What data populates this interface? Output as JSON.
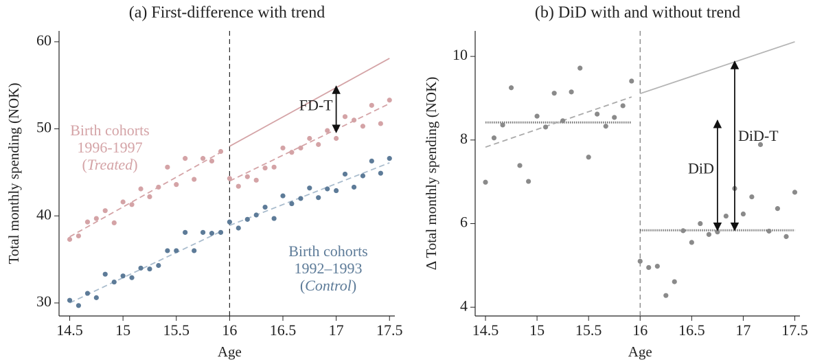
{
  "chart_data": [
    {
      "type": "scatter",
      "title": "(a) First-difference with trend",
      "xlabel": "Age",
      "ylabel": "Total monthly spending (NOK)",
      "xlim": [
        14.4,
        17.55
      ],
      "ylim": [
        28.5,
        61.25
      ],
      "xticks": [
        14.5,
        15,
        15.5,
        16,
        16.5,
        17,
        17.5
      ],
      "yticks": [
        30,
        40,
        50,
        60
      ],
      "vline": 16,
      "x": [
        14.5,
        14.583,
        14.667,
        14.75,
        14.833,
        14.917,
        15,
        15.083,
        15.167,
        15.25,
        15.333,
        15.417,
        15.5,
        15.583,
        15.667,
        15.75,
        15.833,
        15.917,
        16,
        16.083,
        16.167,
        16.25,
        16.333,
        16.417,
        16.5,
        16.583,
        16.667,
        16.75,
        16.833,
        16.917,
        17,
        17.083,
        17.167,
        17.25,
        17.333,
        17.417,
        17.5
      ],
      "series": [
        {
          "color": "#d4a3a6",
          "values": [
            37.3,
            37.7,
            39.3,
            39.7,
            40.6,
            39.2,
            41.6,
            41.3,
            43.1,
            42.2,
            43.3,
            45.6,
            43.6,
            46.6,
            44.2,
            46.6,
            46.3,
            47.4,
            44.3,
            43.4,
            44.5,
            44.1,
            45.5,
            45.6,
            47.8,
            47.3,
            47.8,
            48.9,
            48.2,
            49.8,
            48.9,
            51.4,
            51.0,
            50.3,
            52.7,
            50.6,
            53.3
          ]
        },
        {
          "color": "#5d7b98",
          "values": [
            30.3,
            29.7,
            31.1,
            30.6,
            33.3,
            32.4,
            33.1,
            32.9,
            34.0,
            33.9,
            34.3,
            36.0,
            36.0,
            38.1,
            36.0,
            38.1,
            38.0,
            38.1,
            39.3,
            38.6,
            39.6,
            40.1,
            41.0,
            39.7,
            42.3,
            41.4,
            42.0,
            43.2,
            42.1,
            43.1,
            42.9,
            44.8,
            43.3,
            44.6,
            46.3,
            44.9,
            46.6
          ]
        }
      ],
      "lines": [
        {
          "x": [
            14.5,
            15.917
          ],
          "y": [
            37.6,
            47.3
          ],
          "color": "#d4a3a6",
          "style": "dashed"
        },
        {
          "x": [
            16,
            17.5
          ],
          "y": [
            44.0,
            52.9
          ],
          "color": "#d4a3a6",
          "style": "dashed"
        },
        {
          "x": [
            16,
            17.5
          ],
          "y": [
            48.0,
            58.1
          ],
          "color": "#d4a3a6",
          "style": "solid"
        },
        {
          "x": [
            14.5,
            15.917
          ],
          "y": [
            30.0,
            38.2
          ],
          "color": "#a9bccd",
          "style": "dashed"
        },
        {
          "x": [
            16,
            17.5
          ],
          "y": [
            38.9,
            46.1
          ],
          "color": "#a9bccd",
          "style": "dashed"
        }
      ],
      "arrows": [
        {
          "x": 17,
          "y": [
            49.6,
            54.9
          ],
          "label": "FD-T"
        }
      ],
      "notes": [
        {
          "color": "#d4a3a6",
          "lines": [
            [
              "Birth cohorts"
            ],
            [
              "1996-1997"
            ],
            [
              "(",
              "Treated",
              ")"
            ]
          ]
        },
        {
          "color": "#5d7b98",
          "lines": [
            [
              "Birth cohorts"
            ],
            [
              "1992–1993"
            ],
            [
              "(",
              "Control",
              ")"
            ]
          ]
        }
      ]
    },
    {
      "type": "scatter",
      "title": "(b) DiD with and without trend",
      "xlabel": "Age",
      "ylabel": "Δ Total monthly spending (NOK)",
      "xlim": [
        14.4,
        17.55
      ],
      "ylim": [
        3.79,
        10.61
      ],
      "xticks": [
        14.5,
        15,
        15.5,
        16,
        16.5,
        17,
        17.5
      ],
      "yticks": [
        4,
        6,
        8,
        10
      ],
      "vline": 16,
      "x": [
        14.5,
        14.583,
        14.667,
        14.75,
        14.833,
        14.917,
        15,
        15.083,
        15.167,
        15.25,
        15.333,
        15.417,
        15.5,
        15.583,
        15.667,
        15.75,
        15.833,
        15.917,
        16,
        16.083,
        16.167,
        16.25,
        16.333,
        16.417,
        16.5,
        16.583,
        16.667,
        16.75,
        16.833,
        16.917,
        17,
        17.083,
        17.167,
        17.25,
        17.333,
        17.417,
        17.5
      ],
      "series": [
        {
          "color": "#8a8a8a",
          "values": [
            6.99,
            8.05,
            8.36,
            9.25,
            7.39,
            7.01,
            8.57,
            8.31,
            9.12,
            8.46,
            9.15,
            9.72,
            7.59,
            8.62,
            8.33,
            8.54,
            8.82,
            9.41,
            5.1,
            4.95,
            4.98,
            4.28,
            4.61,
            5.83,
            5.55,
            6.0,
            5.74,
            5.8,
            6.18,
            6.84,
            6.23,
            6.64,
            7.89,
            5.82,
            6.36,
            5.69,
            6.75
          ]
        }
      ],
      "lines": [
        {
          "x": [
            14.5,
            15.917
          ],
          "y": [
            8.42,
            8.42
          ],
          "color": "#777",
          "style": "dotted"
        },
        {
          "x": [
            16,
            17.5
          ],
          "y": [
            5.84,
            5.84
          ],
          "color": "#777",
          "style": "dotted"
        },
        {
          "x": [
            14.5,
            15.917
          ],
          "y": [
            7.83,
            9.03
          ],
          "color": "#aaaaaa",
          "style": "dashed"
        },
        {
          "x": [
            16,
            17.5
          ],
          "y": [
            9.11,
            10.35
          ],
          "color": "#b5b5b5",
          "style": "solid"
        }
      ],
      "arrows": [
        {
          "x": 16.75,
          "y": [
            5.84,
            8.47
          ],
          "label": "DiD"
        },
        {
          "x": 16.917,
          "y": [
            5.84,
            9.88
          ],
          "label": "DiD-T"
        }
      ]
    }
  ]
}
